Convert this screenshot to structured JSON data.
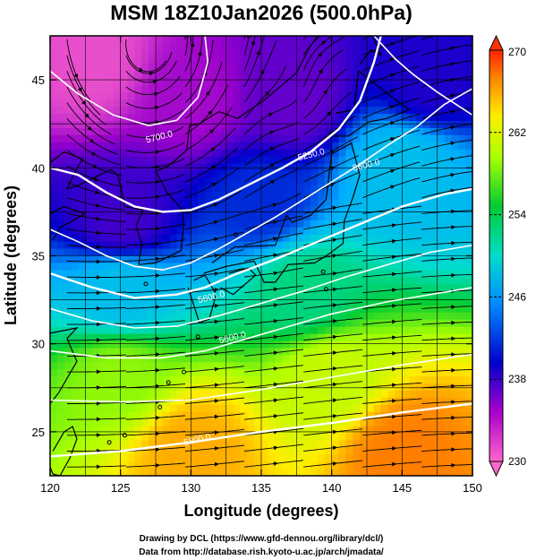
{
  "chart_data": {
    "type": "heatmap",
    "title": "MSM 18Z10Jan2026 (500.0hPa)",
    "xlabel": "Longitude (degrees)",
    "ylabel": "Latitude  (degrees)",
    "xlim": [
      120,
      150
    ],
    "ylim": [
      22.5,
      47.5
    ],
    "xticks": [
      "120",
      "125",
      "130",
      "135",
      "140",
      "145",
      "150"
    ],
    "yticks": [
      "25",
      "30",
      "35",
      "40",
      "45"
    ],
    "colorbar": {
      "range": [
        230,
        270
      ],
      "ticks": [
        "270",
        "262",
        "254",
        "246",
        "238",
        "230"
      ],
      "extend": "both"
    },
    "shading_field_range_K": [
      230,
      270
    ],
    "shading_samples": [
      {
        "lon": 123,
        "lat": 46,
        "value": 231
      },
      {
        "lon": 130,
        "lat": 44,
        "value": 234
      },
      {
        "lon": 137,
        "lat": 44,
        "value": 236
      },
      {
        "lon": 147,
        "lat": 45,
        "value": 238
      },
      {
        "lon": 125,
        "lat": 37,
        "value": 237
      },
      {
        "lon": 135,
        "lat": 38,
        "value": 240
      },
      {
        "lon": 145,
        "lat": 40,
        "value": 245
      },
      {
        "lon": 125,
        "lat": 33,
        "value": 245
      },
      {
        "lon": 138,
        "lat": 33,
        "value": 250
      },
      {
        "lon": 125,
        "lat": 28,
        "value": 256
      },
      {
        "lon": 140,
        "lat": 28,
        "value": 258
      },
      {
        "lon": 130,
        "lat": 24,
        "value": 264
      },
      {
        "lon": 145,
        "lat": 24,
        "value": 266
      }
    ],
    "contours": [
      {
        "label": "5700.0",
        "lon": 127.8,
        "lat": 41.6
      },
      {
        "label": "5250.0",
        "lon": 138.6,
        "lat": 40.6
      },
      {
        "label": "5600.0",
        "lon": 142.5,
        "lat": 40.0
      },
      {
        "label": "5600.0",
        "lon": 131.5,
        "lat": 32.5
      },
      {
        "label": "5600.0",
        "lon": 133.0,
        "lat": 30.2
      },
      {
        "label": "5800.0",
        "lon": 130.5,
        "lat": 24.4
      }
    ],
    "grid": true,
    "streamlines": true,
    "coastlines": true
  },
  "credits": {
    "line1": "Drawing by DCL (https://www.gfd-dennou.org/library/dcl/)",
    "line2": "Data from http://database.rish.kyoto-u.ac.jp/arch/jmadata/"
  },
  "colors": {
    "background": "#ffffff",
    "axis": "#000000",
    "contour": "#ffffff",
    "colormap": [
      "#ff66cc",
      "#9900cc",
      "#0000cc",
      "#00aaff",
      "#00ddcc",
      "#00cc33",
      "#aaff00",
      "#ffee00",
      "#ff8800",
      "#ff2200"
    ]
  }
}
